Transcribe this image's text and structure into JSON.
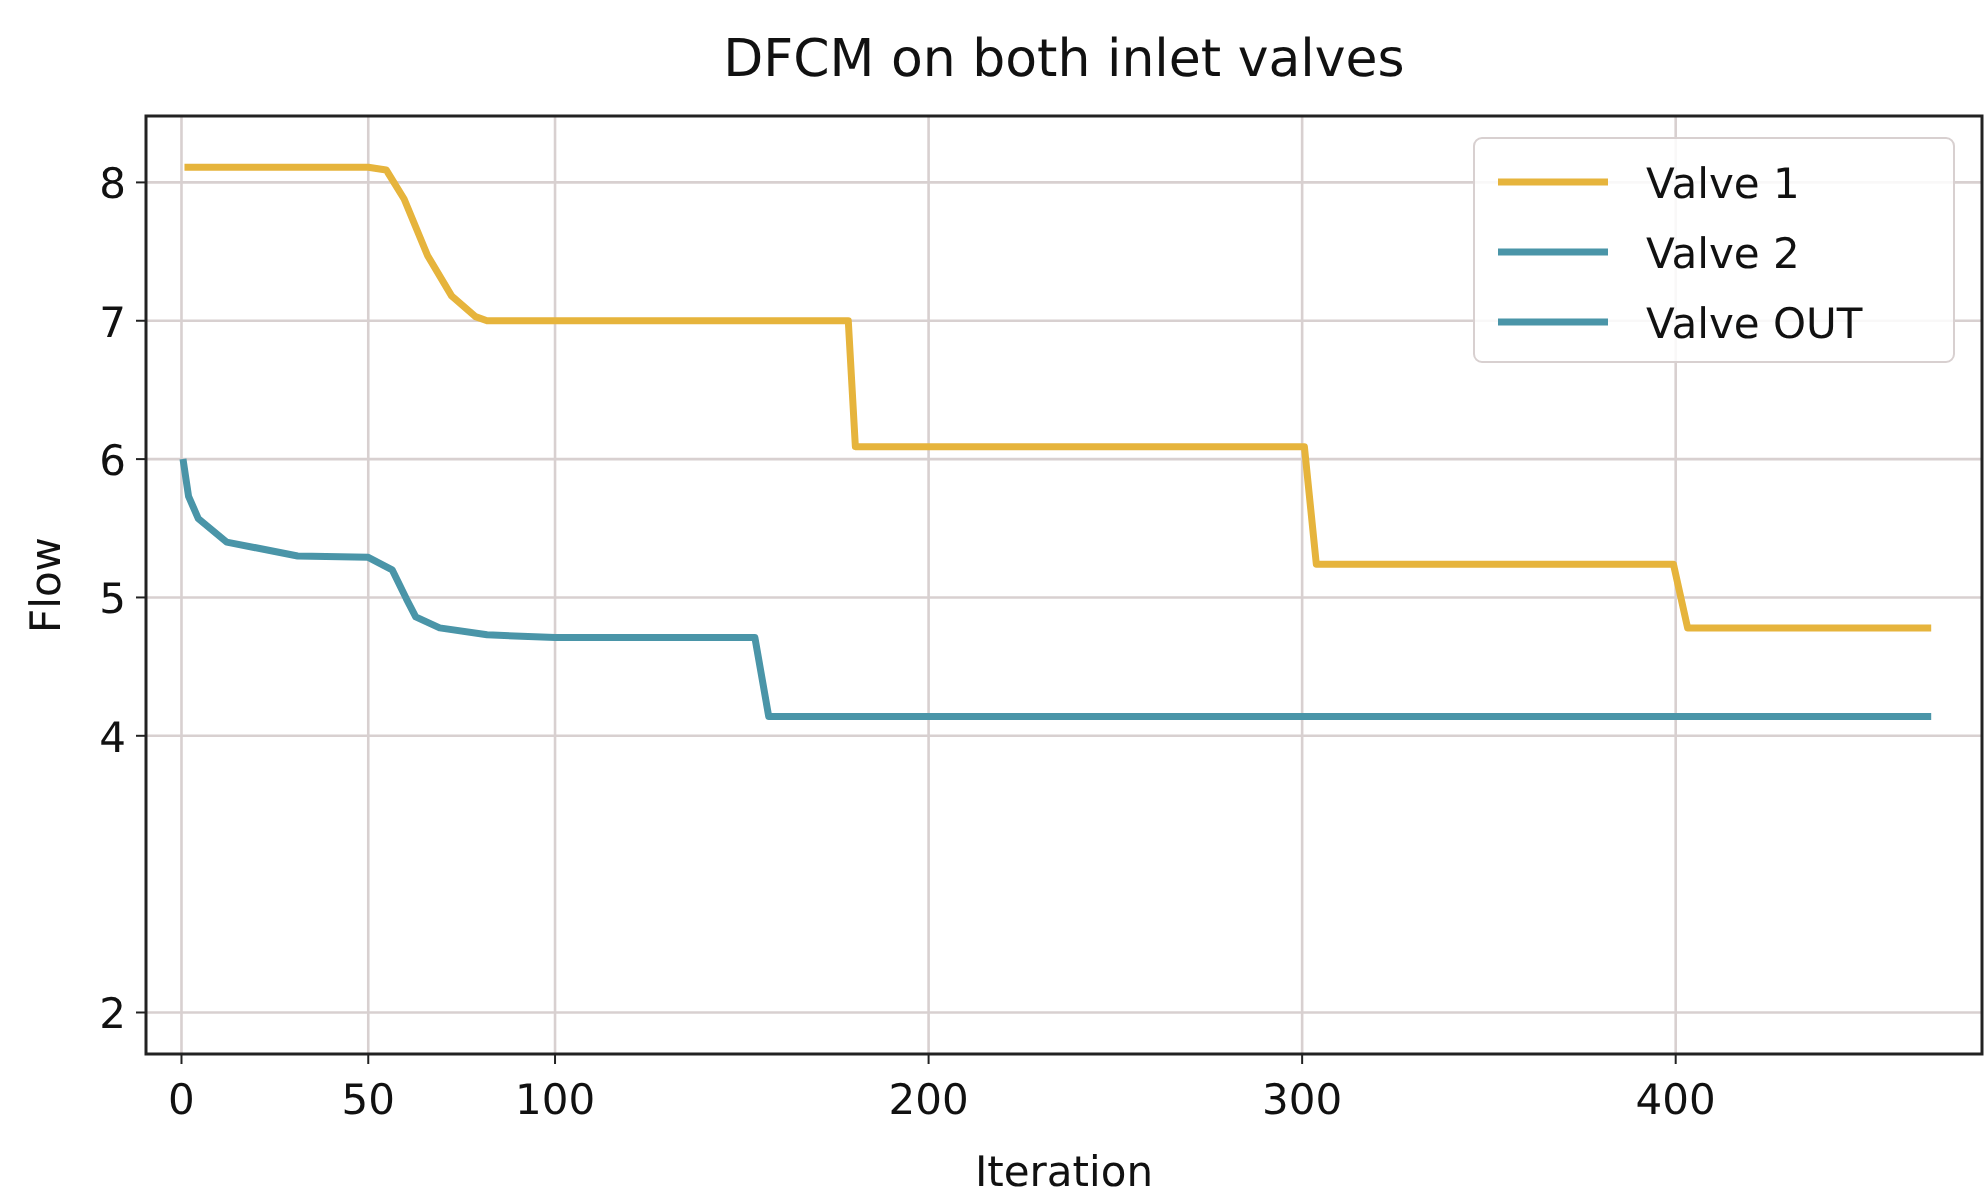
{
  "chart_data": {
    "type": "line",
    "title": "DFCM on both inlet valves",
    "xlabel": "Iteration",
    "ylabel": "Flow",
    "xlim": [
      -9.5,
      482
    ],
    "xticks": [
      0,
      50,
      100,
      200,
      300,
      400
    ],
    "ylim": [
      1.7,
      8.48
    ],
    "yticks": [
      2,
      4,
      5,
      6,
      7,
      8
    ],
    "grid": true,
    "legend": "top right",
    "marker": "none",
    "line_style": "solid",
    "series": [
      {
        "name": "Valve 1",
        "color": "#e6b43c",
        "x": [
          0.8,
          50,
          54.8,
          59.6,
          65.9,
          72.3,
          78.7,
          81.8,
          178.5,
          180.4,
          300.6,
          303.8,
          399.4,
          403.2,
          468.4
        ],
        "values": [
          8.11,
          8.11,
          8.09,
          7.88,
          7.47,
          7.18,
          7.03,
          7.0,
          7.0,
          6.09,
          6.09,
          5.24,
          5.24,
          4.78,
          4.78
        ]
      },
      {
        "name": "Valve 2",
        "color": "#4a95a8",
        "x": [
          0.4,
          1.9,
          4.5,
          12.1,
          31.1,
          50,
          56.4,
          60.2,
          62.7,
          69.1,
          81.8,
          100,
          153.5,
          157.2,
          468.4
        ],
        "values": [
          6.0,
          5.73,
          5.57,
          5.4,
          5.3,
          5.29,
          5.2,
          4.99,
          4.86,
          4.78,
          4.73,
          4.71,
          4.71,
          4.14,
          4.14
        ]
      },
      {
        "name": "Valve OUT",
        "color": "#4a95a8"
      }
    ]
  }
}
